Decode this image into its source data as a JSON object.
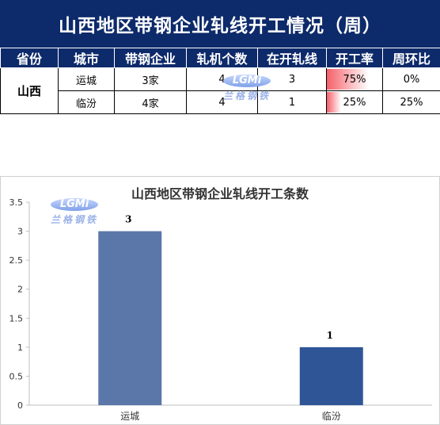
{
  "header": {
    "title": "山西地区带钢企业轧线开工情况（周）"
  },
  "table": {
    "columns": [
      "省份",
      "城市",
      "带钢企业",
      "轧机个数",
      "在开轧线",
      "开工率",
      "周环比"
    ],
    "province": "山西",
    "rows": [
      {
        "city": "运城",
        "companies": "3家",
        "mills": "4",
        "running": "3",
        "rate_label": "75%",
        "rate": 0.75,
        "wow": "0%"
      },
      {
        "city": "临汾",
        "companies": "4家",
        "mills": "4",
        "running": "1",
        "rate_label": "25%",
        "rate": 0.25,
        "wow": "25%"
      }
    ]
  },
  "watermark": {
    "logo": "LGMi",
    "text": "兰格钢铁"
  },
  "chart_data": {
    "type": "bar",
    "title": "山西地区带钢企业轧线开工条数",
    "categories": [
      "运城",
      "临汾"
    ],
    "values": [
      3,
      1
    ],
    "ylim": [
      0,
      3.5
    ],
    "yticks": [
      "0",
      "0.5",
      "1",
      "1.5",
      "2",
      "2.5",
      "3",
      "3.5"
    ],
    "grid": false,
    "colors": [
      "#5b77aa",
      "#2f5597"
    ]
  }
}
